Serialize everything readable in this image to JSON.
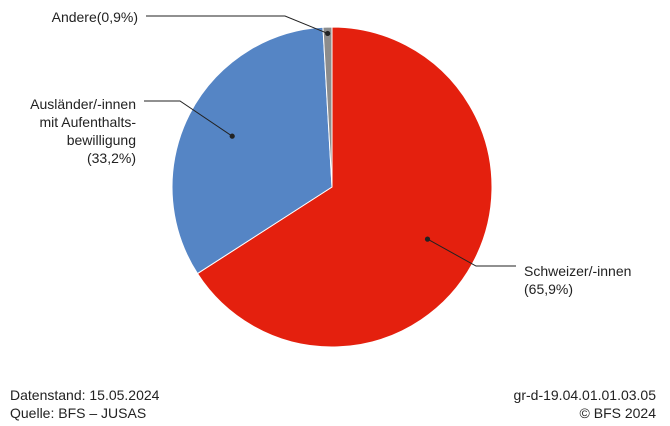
{
  "chart_data": {
    "type": "pie",
    "slices": [
      {
        "label_lines": [
          "Schweizer/-innen",
          "(65,9%)"
        ],
        "value": 65.9,
        "color": "#e4200e"
      },
      {
        "label_lines": [
          "Ausländer/-innen",
          "mit Aufenthalts-",
          "bewilligung",
          "(33,2%)"
        ],
        "value": 33.2,
        "color": "#5585c5"
      },
      {
        "label_lines": [
          "Andere(0,9%)"
        ],
        "value": 0.9,
        "color": "#8c8c8c"
      }
    ]
  },
  "footer": {
    "datenstand": "Datenstand: 15.05.2024",
    "quelle": "Quelle: BFS – JUSAS",
    "code": "gr-d-19.04.01.01.03.05",
    "copyright": "© BFS 2024"
  }
}
